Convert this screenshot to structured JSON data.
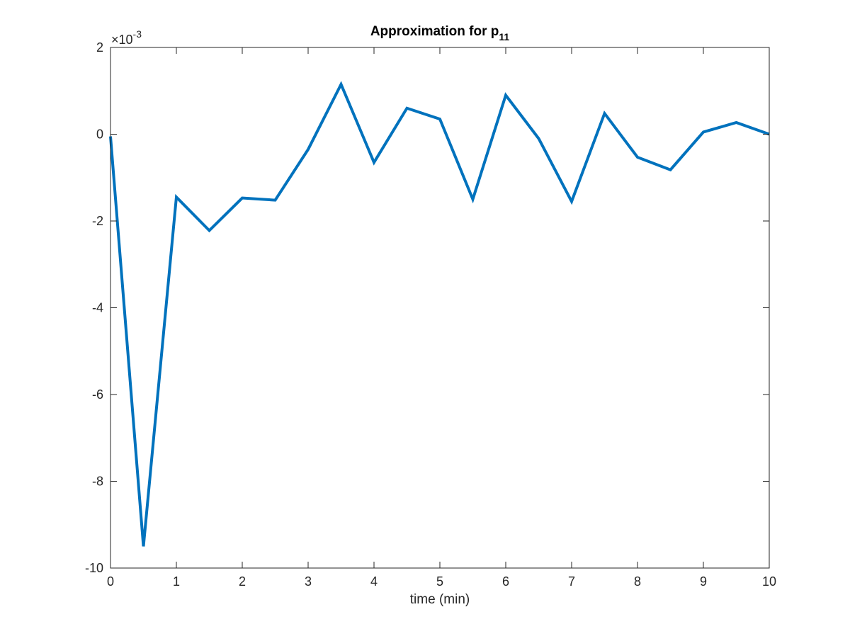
{
  "chart_data": {
    "type": "line",
    "title": "Approximation for p",
    "title_subscript": "11",
    "xlabel": "time (min)",
    "ylabel": "",
    "xlim": [
      0,
      10
    ],
    "ylim": [
      -0.01,
      0.002
    ],
    "x_ticks": [
      0,
      1,
      2,
      3,
      4,
      5,
      6,
      7,
      8,
      9,
      10
    ],
    "x_tick_labels": [
      "0",
      "1",
      "2",
      "3",
      "4",
      "5",
      "6",
      "7",
      "8",
      "9",
      "10"
    ],
    "y_ticks": [
      -0.01,
      -0.008,
      -0.006,
      -0.004,
      -0.002,
      0,
      0.002
    ],
    "y_tick_labels": [
      "-10",
      "-8",
      "-6",
      "-4",
      "-2",
      "0",
      "2"
    ],
    "y_exponent_base": "×10",
    "y_exponent_power": "-3",
    "grid": false,
    "series": [
      {
        "color": "#0072BD",
        "x": [
          0,
          0.5,
          1,
          1.5,
          2,
          2.5,
          3,
          3.5,
          4,
          4.5,
          5,
          5.5,
          6,
          6.5,
          7,
          7.5,
          8,
          8.5,
          9,
          9.5,
          10
        ],
        "y": [
          -5e-05,
          -0.0095,
          -0.00145,
          -0.00222,
          -0.00147,
          -0.00152,
          -0.00035,
          0.00115,
          -0.00065,
          0.0006,
          0.00035,
          -0.0015,
          0.0009,
          -0.0001,
          -0.00155,
          0.00048,
          -0.00053,
          -0.00082,
          5e-05,
          0.00027,
          0.0
        ]
      }
    ]
  }
}
